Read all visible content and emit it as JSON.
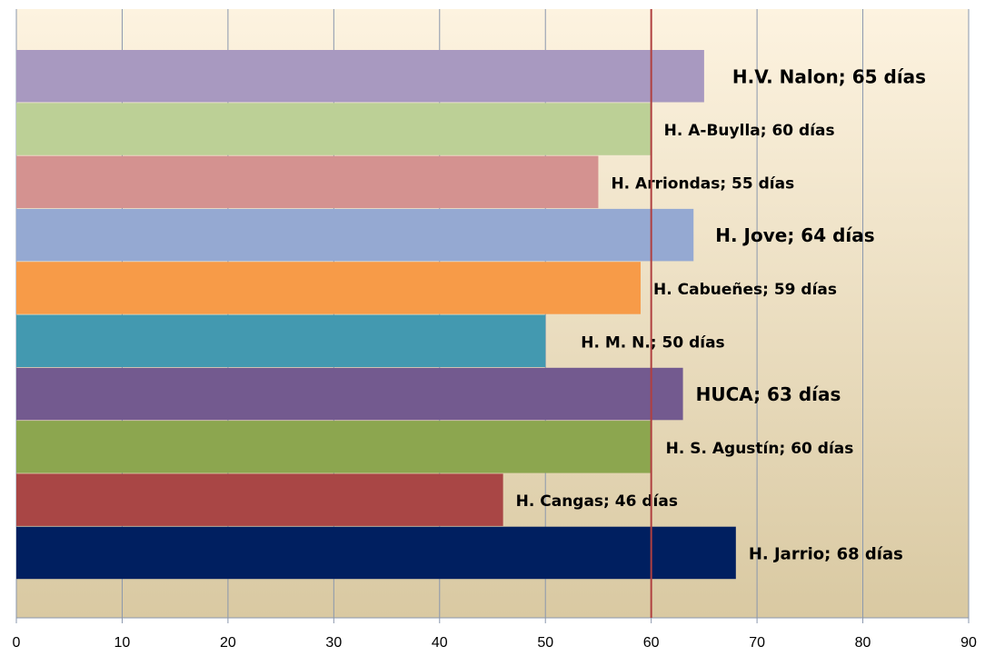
{
  "chart_data": {
    "type": "barh",
    "value_labels": [
      "H.V. Nalon; 65 días",
      "H. A-Buylla; 60 días",
      "H. Arriondas; 55 días",
      "H. Jove; 64 días",
      "H. Cabueñes; 59 días",
      "H. M. N.; 50 días",
      "HUCA; 63 días",
      "H. S. Agustín; 60 días",
      "H. Cangas; 46 días",
      "H. Jarrio; 68 días"
    ],
    "values": [
      65,
      60,
      55,
      64,
      59,
      50,
      63,
      60,
      46,
      68
    ],
    "colors": [
      "#a899c0",
      "#bcd096",
      "#d49290",
      "#95a9d2",
      "#f79b48",
      "#4399b0",
      "#735a8f",
      "#8ca64f",
      "#a94645",
      "#001f60"
    ],
    "xlim": [
      0,
      90
    ],
    "xticks": [
      0,
      10,
      20,
      30,
      40,
      50,
      60,
      70,
      80,
      90
    ],
    "reference_line": 60,
    "reference_color": "#b04040",
    "grid": true
  }
}
